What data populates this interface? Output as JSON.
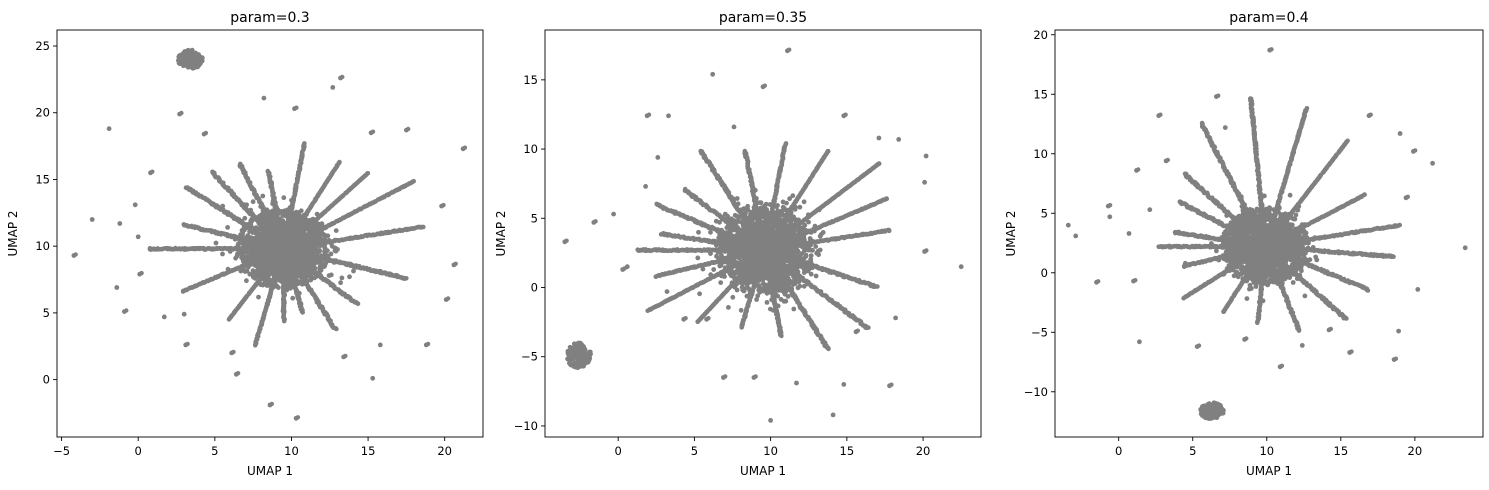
{
  "chart_data": [
    {
      "type": "scatter",
      "title": "param=0.3",
      "xlabel": "UMAP 1",
      "ylabel": "UMAP 2",
      "xlim": [
        -5.3,
        22.5
      ],
      "ylim": [
        -4.3,
        26.2
      ],
      "xticks": [
        "-5",
        "0",
        "5",
        "10",
        "15",
        "20"
      ],
      "yticks": [
        "0",
        "5",
        "10",
        "15",
        "20",
        "25"
      ],
      "point_color": "#808080",
      "center": [
        9.5,
        9.8
      ],
      "core_radius": [
        2.3,
        2.2
      ],
      "blob": {
        "center": [
          3.4,
          24.0
        ],
        "radius": [
          0.8,
          0.7
        ]
      },
      "arms": [
        {
          "angle": 180,
          "length": 7.0
        },
        {
          "angle": 165,
          "length": 5.0
        },
        {
          "angle": 205,
          "length": 5.5
        },
        {
          "angle": 235,
          "length": 4.5
        },
        {
          "angle": 255,
          "length": 5.5
        },
        {
          "angle": 285,
          "length": 3.0
        },
        {
          "angle": 320,
          "length": 4.5
        },
        {
          "angle": 345,
          "length": 6.5
        },
        {
          "angle": 10,
          "length": 7.5
        },
        {
          "angle": 30,
          "length": 8.0
        },
        {
          "angle": 45,
          "length": 6.0
        },
        {
          "angle": 60,
          "length": 5.5
        },
        {
          "angle": 80,
          "length": 6.0
        },
        {
          "angle": 100,
          "length": 4.0
        },
        {
          "angle": 115,
          "length": 5.0
        },
        {
          "angle": 130,
          "length": 5.5
        },
        {
          "angle": 145,
          "length": 6.0
        },
        {
          "angle": 300,
          "length": 5.0
        },
        {
          "angle": 270,
          "length": 3.5
        }
      ],
      "outliers": [
        [
          -1.9,
          18.8
        ],
        [
          -3.0,
          12.0
        ],
        [
          -4.2,
          9.3
        ],
        [
          -1.4,
          6.9
        ],
        [
          -0.9,
          5.1
        ],
        [
          -1.2,
          11.7
        ],
        [
          -0.2,
          13.1
        ],
        [
          0.8,
          15.5
        ],
        [
          2.7,
          19.9
        ],
        [
          4.3,
          18.4
        ],
        [
          8.2,
          21.1
        ],
        [
          10.2,
          20.3
        ],
        [
          12.7,
          21.9
        ],
        [
          13.2,
          22.6
        ],
        [
          15.2,
          18.5
        ],
        [
          17.5,
          18.7
        ],
        [
          21.2,
          17.3
        ],
        [
          19.8,
          13.0
        ],
        [
          20.6,
          8.6
        ],
        [
          20.1,
          6.0
        ],
        [
          18.8,
          2.6
        ],
        [
          15.8,
          2.6
        ],
        [
          15.3,
          0.1
        ],
        [
          13.4,
          1.7
        ],
        [
          10.3,
          -2.9
        ],
        [
          8.6,
          -1.9
        ],
        [
          6.4,
          0.4
        ],
        [
          6.1,
          2.0
        ],
        [
          3.1,
          2.6
        ],
        [
          1.7,
          4.7
        ],
        [
          0.1,
          7.9
        ],
        [
          0.0,
          10.7
        ],
        [
          3.0,
          4.9
        ]
      ]
    },
    {
      "type": "scatter",
      "title": "param=0.35",
      "xlabel": "UMAP 1",
      "ylabel": "UMAP 2",
      "xlim": [
        -4.8,
        23.8
      ],
      "ylim": [
        -10.8,
        18.6
      ],
      "xticks": [
        "0",
        "5",
        "10",
        "15",
        "20"
      ],
      "yticks": [
        "-10",
        "-5",
        "0",
        "5",
        "10",
        "15"
      ],
      "point_color": "#808080",
      "center": [
        9.6,
        2.7
      ],
      "core_radius": [
        2.4,
        2.5
      ],
      "blob": {
        "center": [
          -2.6,
          -4.9
        ],
        "radius": [
          0.8,
          0.9
        ]
      },
      "arms": [
        {
          "angle": 180,
          "length": 6.5
        },
        {
          "angle": 170,
          "length": 5.0
        },
        {
          "angle": 195,
          "length": 5.5
        },
        {
          "angle": 210,
          "length": 7.0
        },
        {
          "angle": 230,
          "length": 5.0
        },
        {
          "angle": 255,
          "length": 4.0
        },
        {
          "angle": 280,
          "length": 4.5
        },
        {
          "angle": 300,
          "length": 6.5
        },
        {
          "angle": 320,
          "length": 7.0
        },
        {
          "angle": 340,
          "length": 6.0
        },
        {
          "angle": 10,
          "length": 6.5
        },
        {
          "angle": 25,
          "length": 7.0
        },
        {
          "angle": 40,
          "length": 8.0
        },
        {
          "angle": 60,
          "length": 6.5
        },
        {
          "angle": 80,
          "length": 6.0
        },
        {
          "angle": 100,
          "length": 5.5
        },
        {
          "angle": 120,
          "length": 6.5
        },
        {
          "angle": 140,
          "length": 5.0
        },
        {
          "angle": 155,
          "length": 6.0
        }
      ],
      "outliers": [
        [
          -3.5,
          3.3
        ],
        [
          -1.6,
          4.7
        ],
        [
          -0.3,
          5.3
        ],
        [
          0.3,
          1.3
        ],
        [
          0.6,
          1.5
        ],
        [
          1.8,
          7.3
        ],
        [
          2.6,
          9.4
        ],
        [
          1.9,
          12.4
        ],
        [
          3.3,
          12.4
        ],
        [
          6.2,
          15.4
        ],
        [
          7.6,
          11.6
        ],
        [
          9.5,
          14.5
        ],
        [
          11.1,
          17.1
        ],
        [
          14.8,
          12.4
        ],
        [
          17.1,
          10.8
        ],
        [
          18.4,
          10.7
        ],
        [
          20.2,
          9.5
        ],
        [
          20.1,
          7.6
        ],
        [
          22.5,
          1.5
        ],
        [
          20.1,
          2.6
        ],
        [
          18.2,
          -2.2
        ],
        [
          17.8,
          -7.1
        ],
        [
          14.8,
          -7.0
        ],
        [
          14.1,
          -9.2
        ],
        [
          10.0,
          -9.6
        ],
        [
          11.7,
          -6.9
        ],
        [
          8.9,
          -6.5
        ],
        [
          6.9,
          -6.5
        ],
        [
          5.8,
          -2.3
        ],
        [
          3.2,
          -0.3
        ],
        [
          4.3,
          -2.3
        ],
        [
          15.6,
          -3.2
        ]
      ]
    },
    {
      "type": "scatter",
      "title": "param=0.4",
      "xlabel": "UMAP 1",
      "ylabel": "UMAP 2",
      "xlim": [
        -4.3,
        24.6
      ],
      "ylim": [
        -13.8,
        20.4
      ],
      "xticks": [
        "0",
        "5",
        "10",
        "15",
        "20"
      ],
      "yticks": [
        "-10",
        "-5",
        "0",
        "5",
        "10",
        "15",
        "20"
      ],
      "point_color": "#808080",
      "center": [
        9.9,
        2.2
      ],
      "core_radius": [
        2.2,
        2.4
      ],
      "blob": {
        "center": [
          6.3,
          -11.6
        ],
        "radius": [
          0.8,
          0.7
        ]
      },
      "arms": [
        {
          "angle": 180,
          "length": 5.5
        },
        {
          "angle": 170,
          "length": 4.5
        },
        {
          "angle": 195,
          "length": 4.0
        },
        {
          "angle": 215,
          "length": 5.0
        },
        {
          "angle": 240,
          "length": 4.0
        },
        {
          "angle": 265,
          "length": 4.0
        },
        {
          "angle": 290,
          "length": 5.0
        },
        {
          "angle": 315,
          "length": 6.0
        },
        {
          "angle": 335,
          "length": 6.0
        },
        {
          "angle": 355,
          "length": 7.0
        },
        {
          "angle": 10,
          "length": 7.5
        },
        {
          "angle": 30,
          "length": 6.0
        },
        {
          "angle": 55,
          "length": 8.0
        },
        {
          "angle": 75,
          "length": 9.0
        },
        {
          "angle": 95,
          "length": 9.5
        },
        {
          "angle": 115,
          "length": 8.5
        },
        {
          "angle": 135,
          "length": 6.0
        },
        {
          "angle": 150,
          "length": 5.0
        }
      ],
      "outliers": [
        [
          -3.4,
          4.0
        ],
        [
          -2.9,
          3.1
        ],
        [
          -0.7,
          5.6
        ],
        [
          -0.6,
          4.7
        ],
        [
          -1.5,
          -0.8
        ],
        [
          0.7,
          3.3
        ],
        [
          1.2,
          8.6
        ],
        [
          2.7,
          13.2
        ],
        [
          1.4,
          -5.8
        ],
        [
          1.0,
          -0.7
        ],
        [
          2.1,
          5.3
        ],
        [
          3.2,
          9.4
        ],
        [
          6.6,
          14.8
        ],
        [
          10.2,
          18.7
        ],
        [
          16.9,
          13.2
        ],
        [
          19.0,
          11.7
        ],
        [
          19.9,
          10.2
        ],
        [
          21.2,
          9.2
        ],
        [
          19.4,
          6.3
        ],
        [
          23.4,
          2.1
        ],
        [
          20.2,
          -1.4
        ],
        [
          18.9,
          -4.9
        ],
        [
          18.6,
          -7.3
        ],
        [
          15.6,
          -6.7
        ],
        [
          14.2,
          -4.8
        ],
        [
          12.4,
          -6.1
        ],
        [
          10.9,
          -7.9
        ],
        [
          8.5,
          -5.6
        ],
        [
          5.3,
          -6.2
        ],
        [
          7.2,
          12.2
        ],
        [
          4.5,
          0.8
        ]
      ]
    }
  ]
}
